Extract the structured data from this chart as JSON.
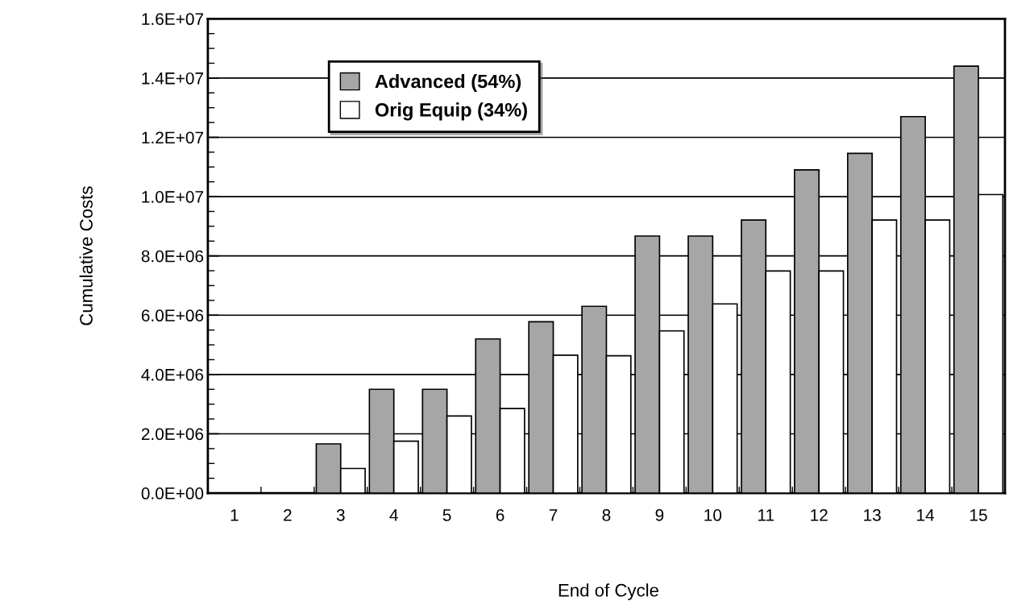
{
  "chart_data": {
    "type": "bar",
    "xlabel": "End of Cycle",
    "ylabel": "Cumulative Costs",
    "categories": [
      "1",
      "2",
      "3",
      "4",
      "5",
      "6",
      "7",
      "8",
      "9",
      "10",
      "11",
      "12",
      "13",
      "14",
      "15"
    ],
    "series": [
      {
        "name": "Advanced (54%)",
        "color": "#a6a6a6",
        "values": [
          0,
          0,
          1660000,
          3500000,
          3500000,
          5200000,
          5780000,
          6300000,
          8670000,
          8670000,
          9210000,
          10900000,
          11460000,
          12700000,
          14400000
        ]
      },
      {
        "name": "Orig Equip (34%)",
        "color": "#ffffff",
        "values": [
          0,
          0,
          830000,
          1750000,
          2600000,
          2850000,
          4650000,
          4630000,
          5470000,
          6380000,
          7490000,
          7490000,
          9210000,
          9210000,
          10070000
        ]
      }
    ],
    "ylim": [
      0,
      16000000
    ],
    "yticks": [
      {
        "value": 0,
        "label": "0.0E+00"
      },
      {
        "value": 2000000,
        "label": "2.0E+06"
      },
      {
        "value": 4000000,
        "label": "4.0E+06"
      },
      {
        "value": 6000000,
        "label": "6.0E+06"
      },
      {
        "value": 8000000,
        "label": "8.0E+06"
      },
      {
        "value": 10000000,
        "label": "1.0E+07"
      },
      {
        "value": 12000000,
        "label": "1.2E+07"
      },
      {
        "value": 14000000,
        "label": "1.4E+07"
      },
      {
        "value": 16000000,
        "label": "1.6E+07"
      }
    ],
    "grid": "y",
    "legend": "top left"
  }
}
